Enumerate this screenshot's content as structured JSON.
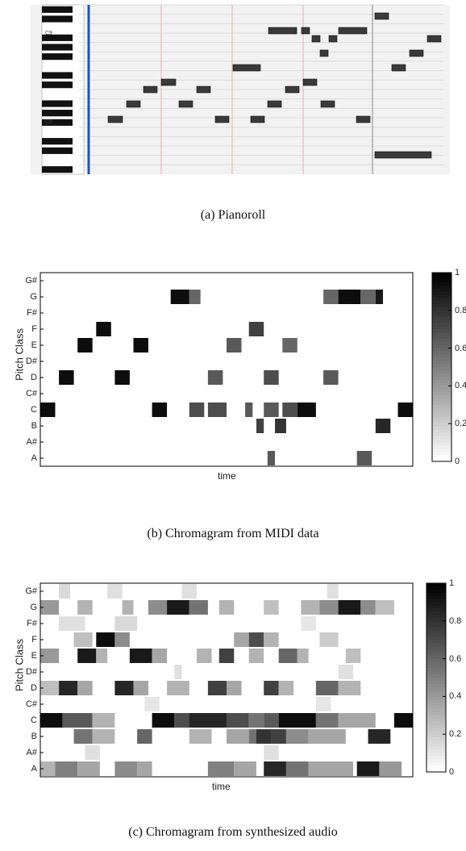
{
  "chart_data": [
    {
      "type": "pianoroll",
      "caption": "(a) Pianoroll",
      "key_labels": [
        "C9",
        "C9"
      ],
      "notes": [
        {
          "t": [
            0.11,
            0.17
          ],
          "pitch": "C"
        },
        {
          "t": [
            0.2,
            0.26
          ],
          "pitch": "D"
        },
        {
          "t": [
            0.29,
            0.34
          ],
          "pitch": "E"
        },
        {
          "t": [
            0.35,
            0.4
          ],
          "pitch": "F"
        },
        {
          "t": [
            0.43,
            0.49
          ],
          "pitch": "D"
        },
        {
          "t": [
            0.5,
            0.56
          ],
          "pitch": "E"
        },
        {
          "t": [
            0.56,
            0.61
          ],
          "pitch": "C"
        },
        {
          "t": [
            0.68,
            0.74
          ],
          "pitch": "C"
        },
        {
          "t": [
            0.74,
            0.79
          ],
          "pitch": "C"
        },
        {
          "t": [
            0.79,
            0.84
          ],
          "pitch": "D"
        },
        {
          "t": [
            0.82,
            0.87
          ],
          "pitch": "E"
        },
        {
          "t": [
            0.86,
            0.93
          ],
          "pitch": "F"
        },
        {
          "t": [
            0.89,
            0.94
          ],
          "pitch": "G"
        },
        {
          "t": [
            0.92,
            0.96
          ],
          "pitch": "G2"
        },
        {
          "t": [
            0.95,
            0.99
          ],
          "pitch": "G3"
        }
      ]
    },
    {
      "type": "heatmap",
      "caption": "(b) Chromagram from MIDI data",
      "xlabel": "time",
      "ylabel": "Pitch Class",
      "pitch_classes": [
        "G#",
        "G",
        "F#",
        "F",
        "E",
        "D#",
        "D",
        "C#",
        "C",
        "B",
        "A#",
        "A"
      ],
      "colorbar": {
        "range": [
          0,
          1
        ],
        "ticks": [
          "1",
          "0.8",
          "0.6",
          "0.4",
          "0.2",
          "0"
        ]
      },
      "segments": {
        "G": [
          [
            0.35,
            0.4,
            0.95
          ],
          [
            0.4,
            0.43,
            0.6
          ],
          [
            0.76,
            0.8,
            0.6
          ],
          [
            0.8,
            0.86,
            0.95
          ],
          [
            0.86,
            0.9,
            0.6
          ],
          [
            0.9,
            0.92,
            0.9
          ]
        ],
        "F": [
          [
            0.15,
            0.19,
            0.95
          ],
          [
            0.56,
            0.6,
            0.75
          ]
        ],
        "E": [
          [
            0.1,
            0.14,
            0.95
          ],
          [
            0.25,
            0.29,
            0.95
          ],
          [
            0.5,
            0.54,
            0.65
          ],
          [
            0.65,
            0.69,
            0.6
          ]
        ],
        "D": [
          [
            0.05,
            0.09,
            0.95
          ],
          [
            0.2,
            0.24,
            0.95
          ],
          [
            0.45,
            0.49,
            0.65
          ],
          [
            0.6,
            0.64,
            0.7
          ],
          [
            0.76,
            0.8,
            0.65
          ]
        ],
        "C": [
          [
            0.0,
            0.04,
            0.95
          ],
          [
            0.3,
            0.34,
            0.95
          ],
          [
            0.4,
            0.44,
            0.7
          ],
          [
            0.45,
            0.5,
            0.7
          ],
          [
            0.55,
            0.57,
            0.65
          ],
          [
            0.6,
            0.64,
            0.65
          ],
          [
            0.65,
            0.69,
            0.7
          ],
          [
            0.69,
            0.74,
            0.95
          ],
          [
            0.96,
            1.0,
            0.95
          ]
        ],
        "B": [
          [
            0.58,
            0.6,
            0.75
          ],
          [
            0.63,
            0.66,
            0.8
          ],
          [
            0.9,
            0.94,
            0.85
          ]
        ],
        "A": [
          [
            0.61,
            0.63,
            0.65
          ],
          [
            0.85,
            0.89,
            0.65
          ]
        ]
      }
    },
    {
      "type": "heatmap",
      "caption": "(c) Chromagram from synthesized audio",
      "xlabel": "time",
      "ylabel": "Pitch Class",
      "pitch_classes": [
        "G#",
        "G",
        "F#",
        "F",
        "E",
        "D#",
        "D",
        "C#",
        "C",
        "B",
        "A#",
        "A"
      ],
      "colorbar": {
        "range": [
          0,
          1
        ],
        "ticks": [
          "1",
          "0.8",
          "0.6",
          "0.4",
          "0.2",
          "0"
        ]
      },
      "segments": {
        "G#": [
          [
            0.05,
            0.08,
            0.15
          ],
          [
            0.18,
            0.22,
            0.12
          ],
          [
            0.38,
            0.42,
            0.12
          ],
          [
            0.77,
            0.8,
            0.12
          ]
        ],
        "G": [
          [
            0.0,
            0.05,
            0.4
          ],
          [
            0.1,
            0.14,
            0.3
          ],
          [
            0.22,
            0.25,
            0.3
          ],
          [
            0.29,
            0.34,
            0.45
          ],
          [
            0.34,
            0.4,
            0.9
          ],
          [
            0.4,
            0.45,
            0.55
          ],
          [
            0.48,
            0.52,
            0.3
          ],
          [
            0.6,
            0.64,
            0.25
          ],
          [
            0.7,
            0.75,
            0.3
          ],
          [
            0.75,
            0.8,
            0.45
          ],
          [
            0.8,
            0.86,
            0.9
          ],
          [
            0.86,
            0.9,
            0.45
          ],
          [
            0.9,
            0.95,
            0.25
          ]
        ],
        "F#": [
          [
            0.05,
            0.12,
            0.12
          ],
          [
            0.2,
            0.26,
            0.15
          ],
          [
            0.7,
            0.74,
            0.1
          ]
        ],
        "F": [
          [
            0.09,
            0.14,
            0.25
          ],
          [
            0.15,
            0.2,
            0.95
          ],
          [
            0.2,
            0.24,
            0.45
          ],
          [
            0.52,
            0.56,
            0.35
          ],
          [
            0.56,
            0.6,
            0.7
          ],
          [
            0.6,
            0.64,
            0.3
          ],
          [
            0.75,
            0.8,
            0.2
          ]
        ],
        "E": [
          [
            0.0,
            0.05,
            0.4
          ],
          [
            0.1,
            0.15,
            0.9
          ],
          [
            0.15,
            0.18,
            0.3
          ],
          [
            0.24,
            0.3,
            0.9
          ],
          [
            0.3,
            0.34,
            0.35
          ],
          [
            0.42,
            0.46,
            0.3
          ],
          [
            0.48,
            0.52,
            0.75
          ],
          [
            0.56,
            0.6,
            0.3
          ],
          [
            0.64,
            0.69,
            0.6
          ],
          [
            0.69,
            0.72,
            0.3
          ],
          [
            0.82,
            0.86,
            0.25
          ]
        ],
        "D#": [
          [
            0.36,
            0.38,
            0.12
          ],
          [
            0.8,
            0.84,
            0.12
          ]
        ],
        "D": [
          [
            0.0,
            0.05,
            0.25
          ],
          [
            0.05,
            0.1,
            0.85
          ],
          [
            0.1,
            0.14,
            0.35
          ],
          [
            0.2,
            0.25,
            0.85
          ],
          [
            0.25,
            0.29,
            0.35
          ],
          [
            0.34,
            0.4,
            0.3
          ],
          [
            0.45,
            0.5,
            0.75
          ],
          [
            0.5,
            0.54,
            0.35
          ],
          [
            0.6,
            0.64,
            0.75
          ],
          [
            0.64,
            0.68,
            0.3
          ],
          [
            0.74,
            0.8,
            0.6
          ],
          [
            0.8,
            0.86,
            0.3
          ]
        ],
        "C#": [
          [
            0.28,
            0.32,
            0.1
          ],
          [
            0.74,
            0.78,
            0.1
          ]
        ],
        "C": [
          [
            0.0,
            0.06,
            0.95
          ],
          [
            0.06,
            0.14,
            0.65
          ],
          [
            0.14,
            0.2,
            0.3
          ],
          [
            0.3,
            0.36,
            0.95
          ],
          [
            0.36,
            0.42,
            0.7
          ],
          [
            0.4,
            0.5,
            0.85
          ],
          [
            0.5,
            0.56,
            0.7
          ],
          [
            0.56,
            0.6,
            0.55
          ],
          [
            0.6,
            0.64,
            0.65
          ],
          [
            0.64,
            0.74,
            0.95
          ],
          [
            0.74,
            0.8,
            0.55
          ],
          [
            0.8,
            0.9,
            0.35
          ],
          [
            0.95,
            1.0,
            0.95
          ]
        ],
        "B": [
          [
            0.09,
            0.14,
            0.55
          ],
          [
            0.14,
            0.2,
            0.3
          ],
          [
            0.26,
            0.3,
            0.6
          ],
          [
            0.4,
            0.46,
            0.3
          ],
          [
            0.5,
            0.56,
            0.35
          ],
          [
            0.56,
            0.6,
            0.55
          ],
          [
            0.58,
            0.62,
            0.8
          ],
          [
            0.62,
            0.66,
            0.75
          ],
          [
            0.66,
            0.72,
            0.45
          ],
          [
            0.72,
            0.82,
            0.35
          ],
          [
            0.88,
            0.94,
            0.85
          ]
        ],
        "A#": [
          [
            0.12,
            0.16,
            0.12
          ],
          [
            0.6,
            0.64,
            0.12
          ]
        ],
        "A": [
          [
            0.0,
            0.04,
            0.3
          ],
          [
            0.04,
            0.1,
            0.5
          ],
          [
            0.1,
            0.16,
            0.35
          ],
          [
            0.2,
            0.26,
            0.45
          ],
          [
            0.26,
            0.3,
            0.35
          ],
          [
            0.45,
            0.52,
            0.5
          ],
          [
            0.52,
            0.58,
            0.35
          ],
          [
            0.6,
            0.66,
            0.85
          ],
          [
            0.66,
            0.72,
            0.55
          ],
          [
            0.72,
            0.84,
            0.35
          ],
          [
            0.85,
            0.91,
            0.9
          ],
          [
            0.91,
            0.97,
            0.4
          ]
        ]
      }
    }
  ]
}
